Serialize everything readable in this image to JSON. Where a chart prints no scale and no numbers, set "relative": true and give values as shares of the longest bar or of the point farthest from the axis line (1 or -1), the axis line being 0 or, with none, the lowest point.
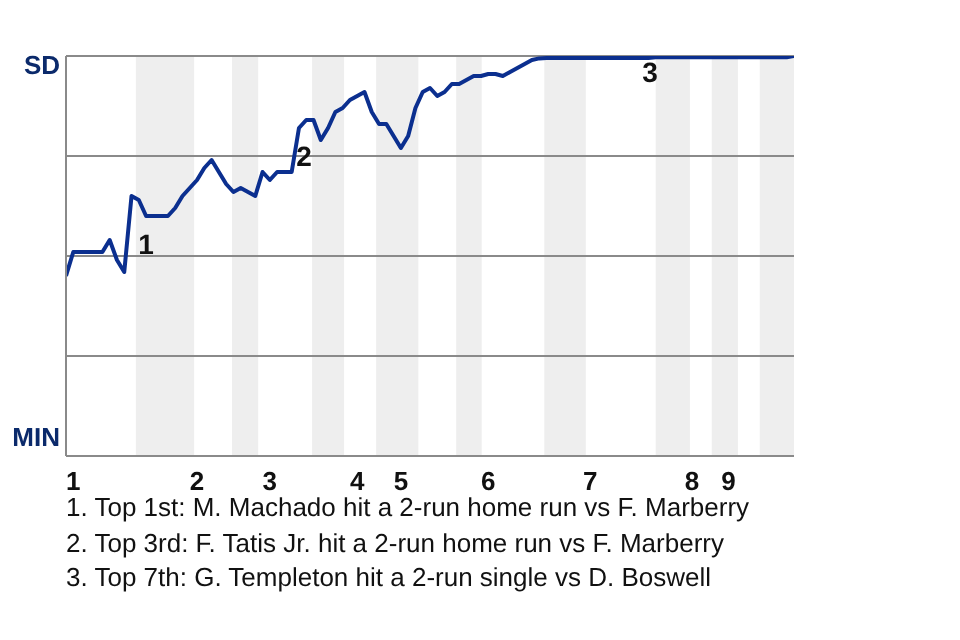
{
  "chart_data": {
    "type": "line",
    "relative": true,
    "categories": [
      null,
      "1",
      null,
      null,
      null,
      null,
      null,
      null,
      null,
      null,
      null,
      null,
      null,
      null,
      null,
      null,
      null,
      null,
      "2",
      null,
      null,
      null,
      null,
      null,
      null,
      null,
      null,
      null,
      "3",
      null,
      null,
      null,
      null,
      null,
      null,
      null,
      null,
      null,
      null,
      null,
      "4",
      null,
      null,
      null,
      null,
      null,
      "5",
      null,
      null,
      null,
      null,
      null,
      null,
      null,
      null,
      null,
      null,
      null,
      "6",
      null,
      null,
      null,
      null,
      null,
      null,
      null,
      null,
      null,
      null,
      null,
      null,
      null,
      "7",
      null,
      null,
      null,
      null,
      null,
      null,
      null,
      null,
      null,
      null,
      null,
      null,
      null,
      "8",
      null,
      null,
      null,
      null,
      "9",
      null,
      null,
      null,
      null,
      null,
      null,
      null,
      null,
      null
    ],
    "series": [
      {
        "color": "#0b2f8f",
        "values": [
          0.45,
          0.51,
          0.51,
          0.51,
          0.51,
          0.51,
          0.54,
          0.49,
          0.46,
          0.65,
          0.64,
          0.6,
          0.6,
          0.6,
          0.6,
          0.62,
          0.65,
          0.67,
          0.69,
          0.72,
          0.74,
          0.71,
          0.68,
          0.66,
          0.67,
          0.66,
          0.65,
          0.71,
          0.69,
          0.71,
          0.71,
          0.71,
          0.82,
          0.84,
          0.84,
          0.79,
          0.82,
          0.86,
          0.87,
          0.89,
          0.9,
          0.91,
          0.86,
          0.83,
          0.83,
          0.8,
          0.77,
          0.8,
          0.87,
          0.91,
          0.92,
          0.9,
          0.91,
          0.93,
          0.93,
          0.94,
          0.95,
          0.95,
          0.955,
          0.955,
          0.95,
          0.96,
          0.97,
          0.98,
          0.99,
          0.994,
          0.995,
          0.995,
          0.995,
          0.995,
          0.995,
          0.995,
          0.995,
          0.995,
          0.995,
          0.995,
          0.995,
          0.995,
          0.995,
          0.995,
          0.995,
          0.997,
          0.997,
          0.997,
          0.997,
          0.997,
          0.997,
          0.997,
          0.997,
          0.997,
          0.997,
          0.997,
          0.997,
          0.997,
          0.997,
          0.997,
          0.997,
          0.997,
          0.997,
          0.997,
          1
        ]
      }
    ],
    "grid": "y",
    "marker": "none",
    "line_style": "solid",
    "annotations": [
      "SD",
      "MIN",
      "1",
      "2",
      "3",
      "1. Top 1st: M. Machado hit a 2-run home run vs F. Marberry",
      "2. Top 3rd: F. Tatis Jr. hit a 2-run home run vs F. Marberry",
      "3. Top 7th: G. Templeton hit a 2-run single vs D. Boswell"
    ]
  }
}
